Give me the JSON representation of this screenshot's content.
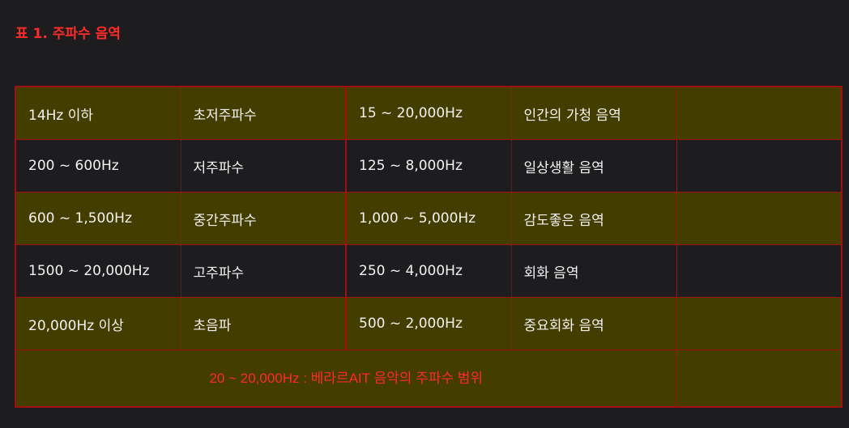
{
  "caption": "표 1. 주파수 음역",
  "table": {
    "rows": [
      {
        "col1": "14Hz 이하",
        "col2": "초저주파수",
        "col3": "15 ~ 20,000Hz",
        "col4": "인간의 가청 음역",
        "col5": ""
      },
      {
        "col1": "200 ~ 600Hz",
        "col2": "저주파수",
        "col3": "125 ~ 8,000Hz",
        "col4": "일상생활 음역",
        "col5": ""
      },
      {
        "col1": "600 ~ 1,500Hz",
        "col2": "중간주파수",
        "col3": "1,000 ~ 5,000Hz",
        "col4": "감도좋은 음역",
        "col5": ""
      },
      {
        "col1": "1500 ~ 20,000Hz",
        "col2": "고주파수",
        "col3": "250 ~ 4,000Hz",
        "col4": "회화 음역",
        "col5": ""
      },
      {
        "col1": "20,000Hz 이상",
        "col2": "초음파",
        "col3": "500 ~ 2,000Hz",
        "col4": "중요회화 음역",
        "col5": ""
      }
    ],
    "footer": "20 ~ 20,000Hz : 베라르AIT 음악의 주파수 범위"
  },
  "colors": {
    "background": "#1d1d1f",
    "row_olive": "#443d00",
    "row_dark": "#1d1d20",
    "border": "#a01010",
    "accent_red": "#ff2a2a",
    "text": "#f2f2f2"
  }
}
